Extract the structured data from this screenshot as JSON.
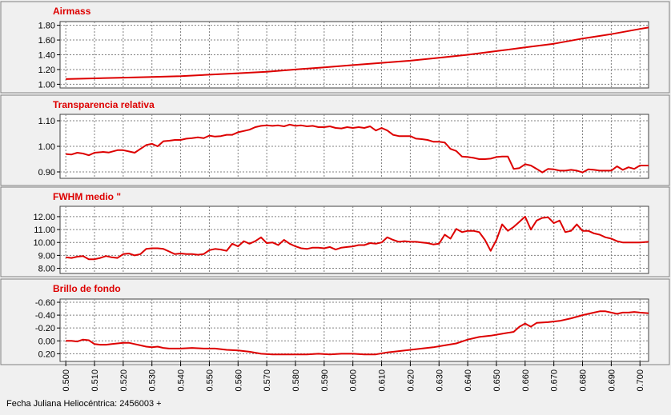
{
  "footer": {
    "x_axis_label": "Fecha Juliana Heliocéntrica: 2456003 +"
  },
  "x_axis": {
    "range": [
      0.498,
      0.703
    ],
    "ticks": [
      "0.500",
      "0.510",
      "0.520",
      "0.530",
      "0.540",
      "0.550",
      "0.560",
      "0.570",
      "0.580",
      "0.590",
      "0.600",
      "0.610",
      "0.620",
      "0.630",
      "0.640",
      "0.650",
      "0.660",
      "0.670",
      "0.680",
      "0.690",
      "0.700"
    ]
  },
  "colors": {
    "line": "#dd0000",
    "title": "#dd0000",
    "grid": "#808080",
    "panel_bg": "#f0f0f0",
    "plot_bg": "#ffffff"
  },
  "chart_data": [
    {
      "type": "line",
      "title": "Airmass",
      "ylim": [
        0.95,
        1.85
      ],
      "inverted": false,
      "yticks": [
        "1.00",
        "1.20",
        "1.40",
        "1.60",
        "1.80"
      ],
      "x": [
        0.5,
        0.51,
        0.52,
        0.53,
        0.54,
        0.55,
        0.56,
        0.57,
        0.58,
        0.59,
        0.6,
        0.61,
        0.62,
        0.63,
        0.64,
        0.65,
        0.66,
        0.67,
        0.68,
        0.69,
        0.7,
        0.703
      ],
      "y": [
        1.07,
        1.08,
        1.09,
        1.1,
        1.11,
        1.13,
        1.15,
        1.17,
        1.2,
        1.23,
        1.26,
        1.29,
        1.32,
        1.36,
        1.4,
        1.45,
        1.5,
        1.55,
        1.62,
        1.68,
        1.75,
        1.77
      ]
    },
    {
      "type": "line",
      "title": "Transparencia relativa",
      "ylim": [
        0.875,
        1.125
      ],
      "inverted": false,
      "yticks": [
        "0.90",
        "1.00",
        "1.10"
      ],
      "x": [
        0.5,
        0.502,
        0.504,
        0.506,
        0.508,
        0.51,
        0.513,
        0.515,
        0.518,
        0.52,
        0.522,
        0.524,
        0.526,
        0.528,
        0.53,
        0.532,
        0.534,
        0.536,
        0.538,
        0.54,
        0.542,
        0.544,
        0.546,
        0.548,
        0.55,
        0.552,
        0.554,
        0.556,
        0.558,
        0.56,
        0.562,
        0.564,
        0.566,
        0.568,
        0.57,
        0.572,
        0.574,
        0.576,
        0.578,
        0.58,
        0.582,
        0.584,
        0.586,
        0.588,
        0.59,
        0.592,
        0.594,
        0.596,
        0.598,
        0.6,
        0.602,
        0.604,
        0.606,
        0.608,
        0.61,
        0.612,
        0.614,
        0.616,
        0.618,
        0.62,
        0.622,
        0.624,
        0.626,
        0.628,
        0.63,
        0.632,
        0.634,
        0.636,
        0.638,
        0.64,
        0.642,
        0.644,
        0.646,
        0.648,
        0.65,
        0.652,
        0.654,
        0.656,
        0.658,
        0.66,
        0.662,
        0.664,
        0.666,
        0.668,
        0.67,
        0.672,
        0.674,
        0.676,
        0.678,
        0.68,
        0.682,
        0.684,
        0.686,
        0.688,
        0.69,
        0.692,
        0.694,
        0.696,
        0.698,
        0.7,
        0.703
      ],
      "y": [
        0.97,
        0.968,
        0.975,
        0.972,
        0.965,
        0.975,
        0.978,
        0.976,
        0.985,
        0.985,
        0.98,
        0.975,
        0.99,
        1.005,
        1.01,
        1.0,
        1.02,
        1.022,
        1.025,
        1.025,
        1.03,
        1.032,
        1.035,
        1.032,
        1.042,
        1.038,
        1.04,
        1.045,
        1.045,
        1.055,
        1.06,
        1.065,
        1.075,
        1.08,
        1.082,
        1.08,
        1.082,
        1.078,
        1.085,
        1.08,
        1.082,
        1.078,
        1.08,
        1.075,
        1.075,
        1.078,
        1.072,
        1.07,
        1.075,
        1.072,
        1.075,
        1.072,
        1.078,
        1.062,
        1.072,
        1.062,
        1.045,
        1.04,
        1.04,
        1.04,
        1.03,
        1.028,
        1.025,
        1.018,
        1.018,
        1.015,
        0.99,
        0.982,
        0.96,
        0.958,
        0.955,
        0.95,
        0.95,
        0.952,
        0.958,
        0.96,
        0.96,
        0.912,
        0.915,
        0.93,
        0.925,
        0.912,
        0.898,
        0.912,
        0.91,
        0.905,
        0.905,
        0.908,
        0.905,
        0.898,
        0.91,
        0.908,
        0.905,
        0.905,
        0.905,
        0.922,
        0.908,
        0.918,
        0.912,
        0.925,
        0.925
      ]
    },
    {
      "type": "line",
      "title": "FWHM medio \"",
      "ylim": [
        7.6,
        12.8
      ],
      "inverted": false,
      "yticks": [
        "8.00",
        "9.00",
        "10.00",
        "11.00",
        "12.00"
      ],
      "x": [
        0.5,
        0.502,
        0.504,
        0.506,
        0.508,
        0.51,
        0.512,
        0.514,
        0.516,
        0.518,
        0.52,
        0.522,
        0.524,
        0.526,
        0.528,
        0.53,
        0.532,
        0.534,
        0.536,
        0.538,
        0.54,
        0.542,
        0.544,
        0.546,
        0.548,
        0.55,
        0.552,
        0.554,
        0.556,
        0.558,
        0.56,
        0.562,
        0.564,
        0.566,
        0.568,
        0.57,
        0.572,
        0.574,
        0.576,
        0.578,
        0.58,
        0.582,
        0.584,
        0.586,
        0.588,
        0.59,
        0.592,
        0.594,
        0.596,
        0.598,
        0.6,
        0.602,
        0.604,
        0.606,
        0.608,
        0.61,
        0.612,
        0.614,
        0.616,
        0.618,
        0.62,
        0.622,
        0.624,
        0.626,
        0.628,
        0.63,
        0.632,
        0.634,
        0.636,
        0.638,
        0.64,
        0.642,
        0.644,
        0.646,
        0.648,
        0.65,
        0.652,
        0.654,
        0.656,
        0.658,
        0.66,
        0.662,
        0.664,
        0.666,
        0.668,
        0.67,
        0.672,
        0.674,
        0.676,
        0.678,
        0.68,
        0.682,
        0.684,
        0.686,
        0.688,
        0.69,
        0.692,
        0.694,
        0.696,
        0.698,
        0.7,
        0.703
      ],
      "y": [
        8.85,
        8.8,
        8.9,
        8.95,
        8.7,
        8.7,
        8.8,
        8.95,
        8.85,
        8.8,
        9.1,
        9.15,
        9.0,
        9.1,
        9.5,
        9.55,
        9.55,
        9.5,
        9.3,
        9.1,
        9.15,
        9.1,
        9.1,
        9.05,
        9.1,
        9.4,
        9.5,
        9.45,
        9.35,
        9.9,
        9.7,
        10.1,
        9.9,
        10.1,
        10.4,
        9.95,
        10.0,
        9.8,
        10.2,
        9.9,
        9.7,
        9.55,
        9.5,
        9.6,
        9.6,
        9.55,
        9.65,
        9.45,
        9.6,
        9.65,
        9.7,
        9.8,
        9.8,
        9.95,
        9.9,
        10.0,
        10.4,
        10.2,
        10.05,
        10.1,
        10.05,
        10.05,
        10.0,
        9.95,
        9.85,
        9.9,
        10.6,
        10.3,
        11.05,
        10.8,
        10.9,
        10.9,
        10.8,
        10.2,
        9.35,
        10.2,
        11.4,
        10.9,
        11.2,
        11.6,
        12.0,
        11.0,
        11.7,
        11.9,
        11.95,
        11.5,
        11.7,
        10.8,
        10.9,
        11.4,
        10.9,
        10.9,
        10.7,
        10.6,
        10.4,
        10.3,
        10.1,
        10.0,
        10.0,
        10.0,
        10.0,
        10.05
      ]
    },
    {
      "type": "line",
      "title": "Brillo de fondo",
      "ylim": [
        0.32,
        -0.65
      ],
      "inverted": true,
      "yticks": [
        "-0.60",
        "-0.40",
        "-0.20",
        "0.00",
        "0.20"
      ],
      "x": [
        0.5,
        0.502,
        0.504,
        0.506,
        0.508,
        0.51,
        0.512,
        0.514,
        0.516,
        0.518,
        0.52,
        0.522,
        0.524,
        0.526,
        0.528,
        0.53,
        0.532,
        0.534,
        0.536,
        0.538,
        0.54,
        0.544,
        0.548,
        0.552,
        0.556,
        0.56,
        0.564,
        0.568,
        0.572,
        0.576,
        0.58,
        0.584,
        0.588,
        0.592,
        0.596,
        0.6,
        0.604,
        0.608,
        0.612,
        0.616,
        0.62,
        0.624,
        0.628,
        0.632,
        0.636,
        0.64,
        0.644,
        0.648,
        0.652,
        0.656,
        0.658,
        0.66,
        0.662,
        0.664,
        0.668,
        0.672,
        0.676,
        0.68,
        0.684,
        0.686,
        0.688,
        0.69,
        0.692,
        0.694,
        0.696,
        0.698,
        0.7,
        0.703
      ],
      "y": [
        0.0,
        0.0,
        0.01,
        -0.02,
        -0.01,
        0.05,
        0.06,
        0.06,
        0.05,
        0.04,
        0.03,
        0.03,
        0.05,
        0.07,
        0.09,
        0.1,
        0.09,
        0.11,
        0.12,
        0.12,
        0.12,
        0.11,
        0.12,
        0.12,
        0.14,
        0.15,
        0.17,
        0.2,
        0.21,
        0.21,
        0.21,
        0.21,
        0.2,
        0.21,
        0.2,
        0.2,
        0.21,
        0.21,
        0.18,
        0.16,
        0.14,
        0.12,
        0.1,
        0.07,
        0.04,
        -0.02,
        -0.06,
        -0.08,
        -0.11,
        -0.14,
        -0.22,
        -0.27,
        -0.22,
        -0.28,
        -0.29,
        -0.31,
        -0.35,
        -0.4,
        -0.44,
        -0.46,
        -0.46,
        -0.44,
        -0.42,
        -0.44,
        -0.44,
        -0.45,
        -0.44,
        -0.43
      ]
    }
  ]
}
